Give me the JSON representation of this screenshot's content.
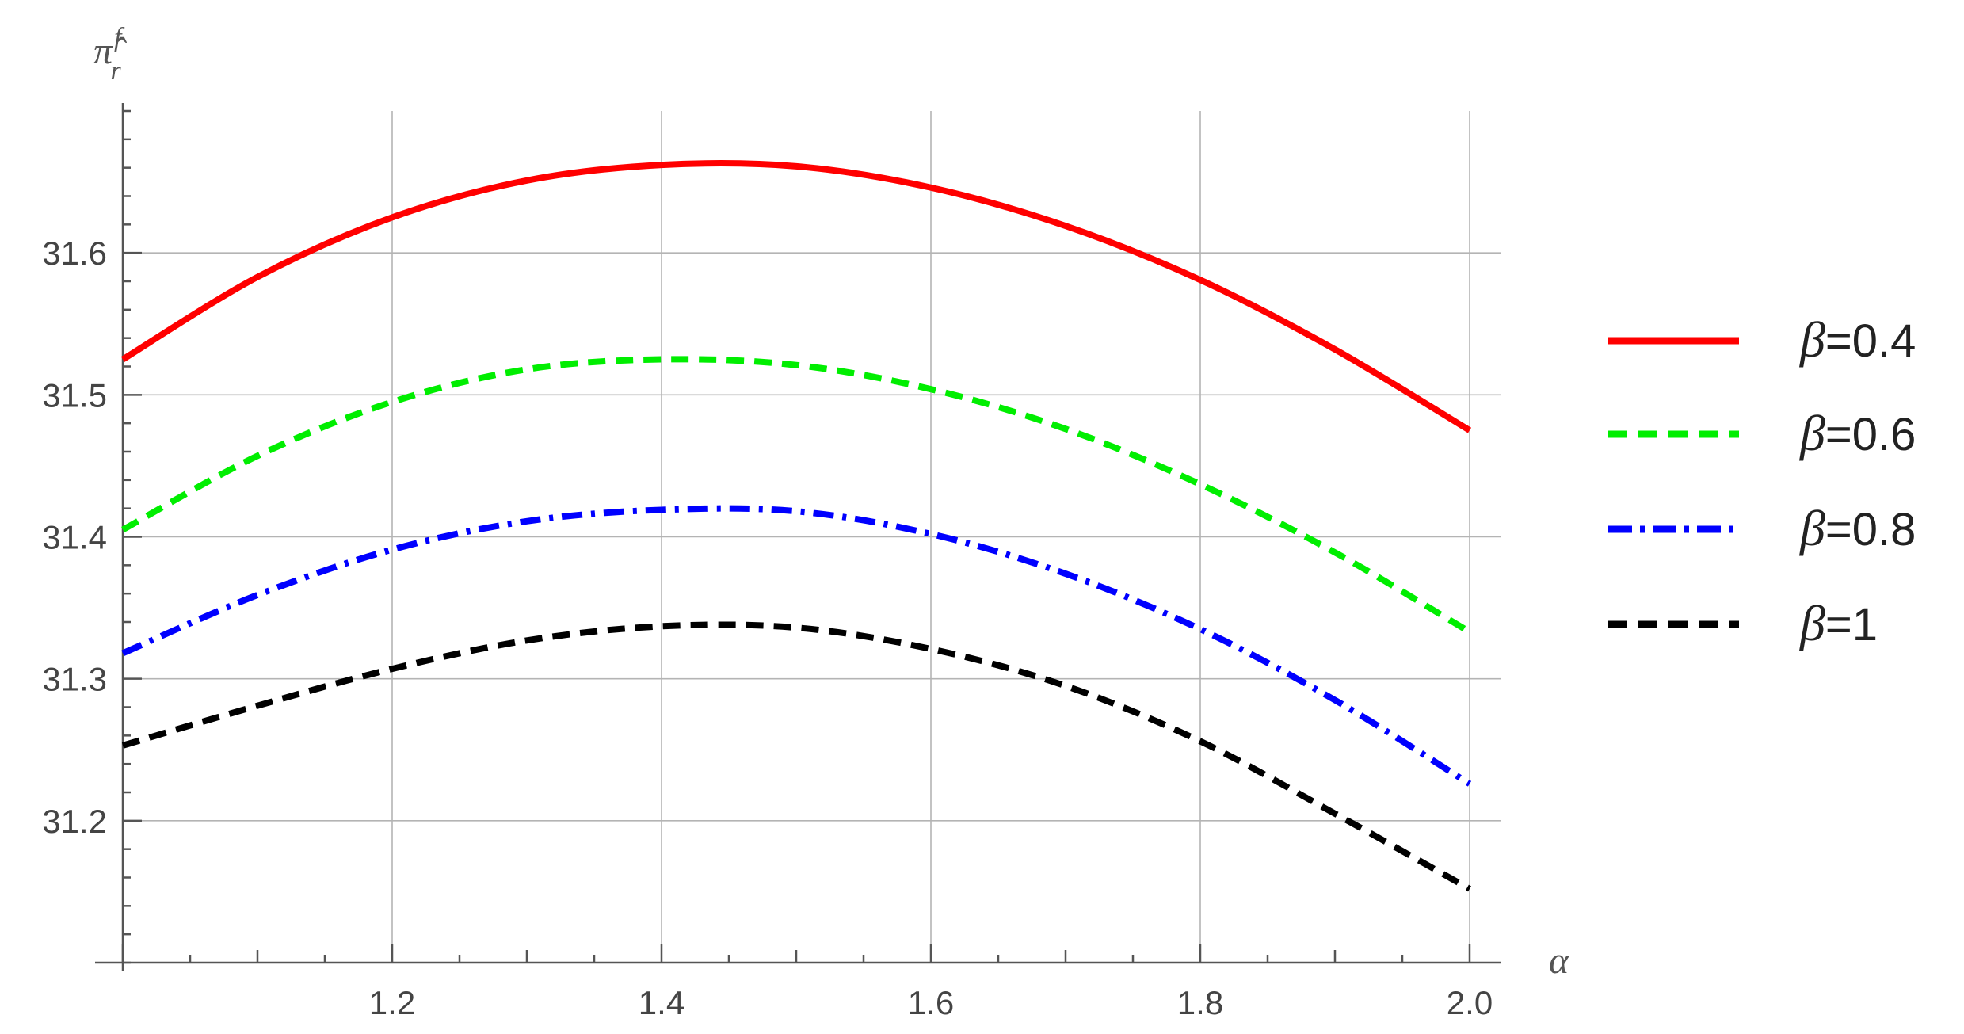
{
  "chart_data": {
    "type": "line",
    "xlabel": "α",
    "ylabel": {
      "base": "π̂",
      "sub": "r",
      "sup": "f"
    },
    "xlim": [
      1.0,
      2.0
    ],
    "ylim": [
      31.1,
      31.7
    ],
    "x_ticks": [
      1.2,
      1.4,
      1.6,
      1.8,
      2.0
    ],
    "x_tick_labels": [
      "1.2",
      "1.4",
      "1.6",
      "1.8",
      "2.0"
    ],
    "y_ticks": [
      31.2,
      31.3,
      31.4,
      31.5,
      31.6
    ],
    "y_tick_labels": [
      "31.2",
      "31.3",
      "31.4",
      "31.5",
      "31.6"
    ],
    "grid": true,
    "legend_position": "right",
    "x": [
      1.0,
      1.1,
      1.2,
      1.3,
      1.4,
      1.5,
      1.6,
      1.7,
      1.8,
      1.9,
      2.0
    ],
    "series": [
      {
        "name": "β=0.4",
        "legend_symbol": "β",
        "legend_value": "=0.4",
        "color": "#ff0000",
        "style": "solid",
        "values": [
          31.525,
          31.583,
          31.625,
          31.651,
          31.662,
          31.661,
          31.646,
          31.619,
          31.581,
          31.532,
          31.475
        ]
      },
      {
        "name": "β=0.6",
        "legend_symbol": "β",
        "legend_value": "=0.6",
        "color": "#00ee00",
        "style": "dashed",
        "values": [
          31.405,
          31.457,
          31.495,
          31.518,
          31.525,
          31.521,
          31.504,
          31.476,
          31.437,
          31.389,
          31.333
        ]
      },
      {
        "name": "β=0.8",
        "legend_symbol": "β",
        "legend_value": "=0.8",
        "color": "#0000ff",
        "style": "dashdot",
        "values": [
          31.318,
          31.359,
          31.391,
          31.411,
          31.419,
          31.418,
          31.402,
          31.374,
          31.335,
          31.285,
          31.226
        ]
      },
      {
        "name": "β=1",
        "legend_symbol": "β",
        "legend_value": "=1",
        "color": "#000000",
        "style": "dashed",
        "values": [
          31.253,
          31.281,
          31.307,
          31.327,
          31.337,
          31.336,
          31.321,
          31.295,
          31.256,
          31.205,
          31.152
        ]
      }
    ]
  }
}
